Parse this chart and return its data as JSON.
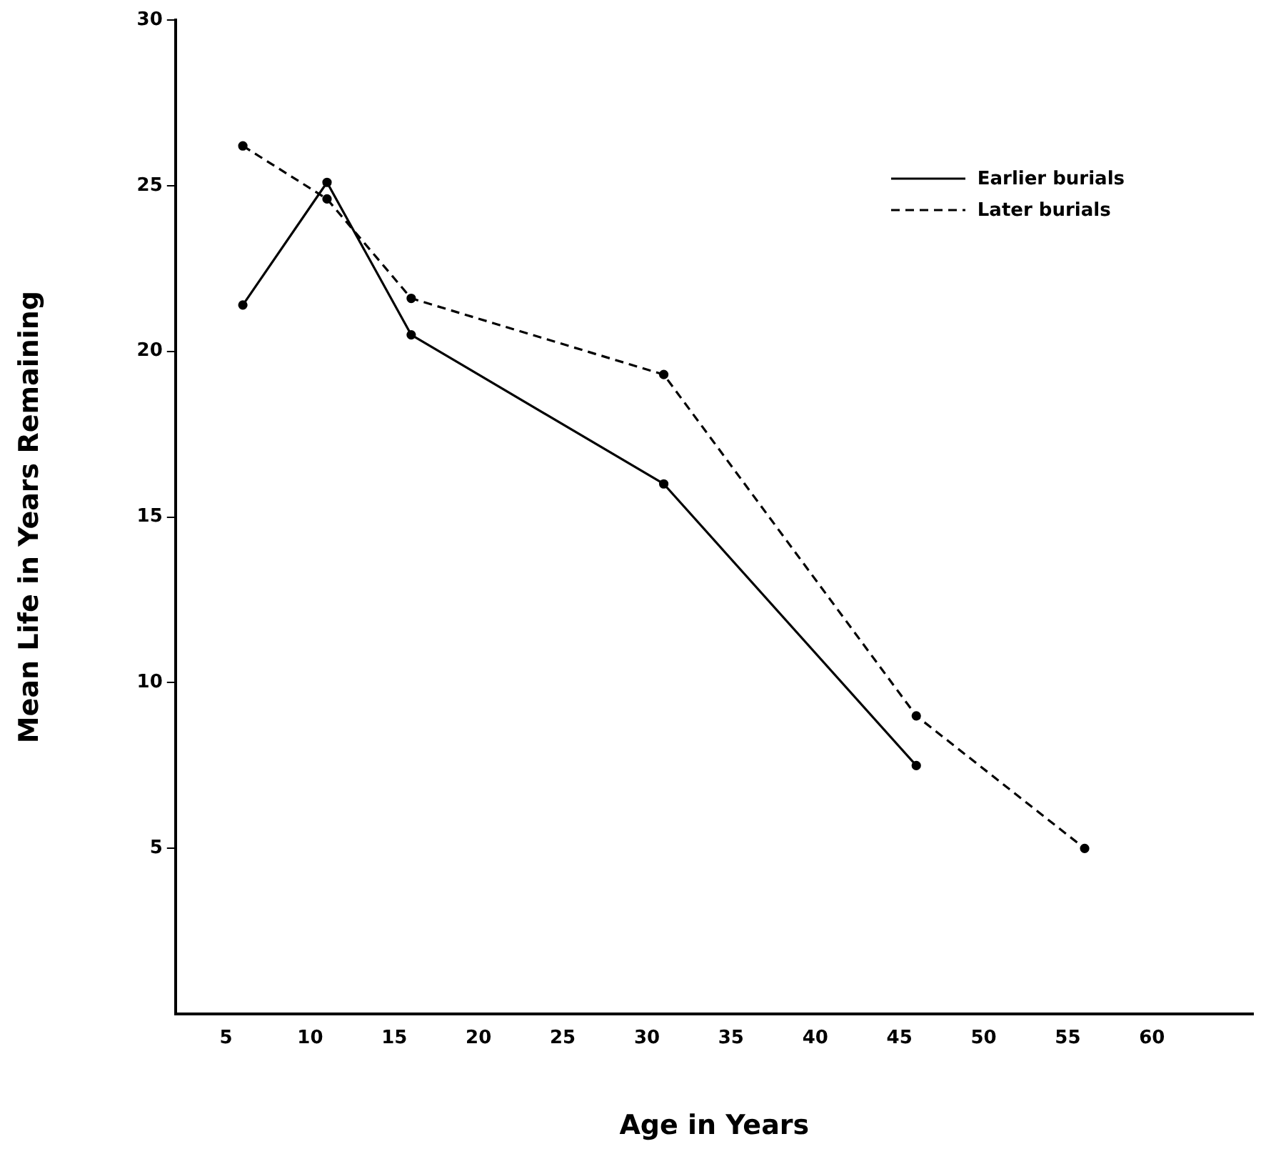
{
  "chart_data": {
    "type": "line",
    "xlabel": "Age in Years",
    "ylabel": "Mean Life in Years Remaining",
    "series": [
      {
        "name": "Earlier burials",
        "color": "#000000",
        "line_style": "solid",
        "x": [
          6,
          11,
          16,
          31,
          46
        ],
        "values": [
          21.4,
          25.1,
          20.5,
          16.0,
          7.5
        ]
      },
      {
        "name": "Later burials",
        "color": "#000000",
        "line_style": "dashed",
        "x": [
          6,
          11,
          16,
          31,
          46,
          56
        ],
        "values": [
          26.2,
          24.6,
          21.6,
          19.3,
          9.0,
          5.0
        ]
      }
    ],
    "xlim": [
      2,
      66
    ],
    "xticks": [
      5,
      10,
      15,
      20,
      25,
      30,
      35,
      40,
      45,
      50,
      55,
      60
    ],
    "ylim": [
      0,
      30
    ],
    "yticks": [
      5,
      10,
      15,
      20,
      25,
      30
    ],
    "grid": false,
    "legend": "top right",
    "marker": "circle"
  }
}
